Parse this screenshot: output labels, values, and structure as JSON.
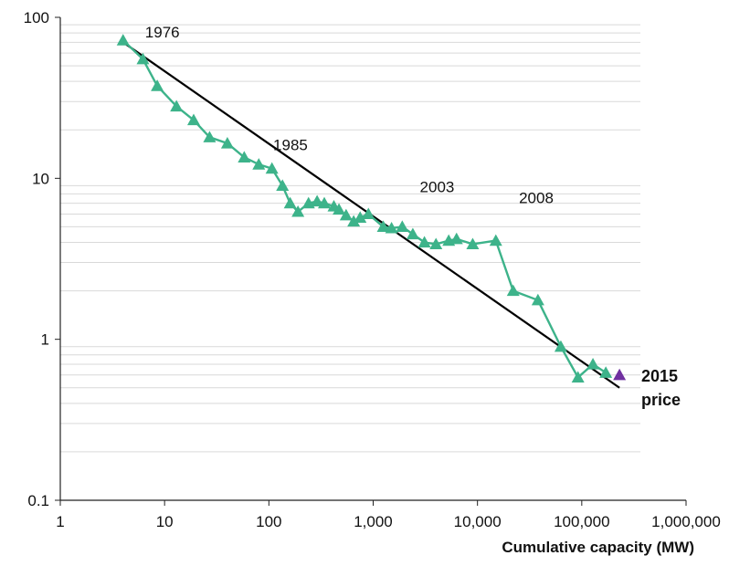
{
  "chart_data": {
    "type": "line",
    "title": "",
    "xlabel": "Cumulative capacity (MW)",
    "ylabel": "",
    "xscale": "log",
    "yscale": "log",
    "xlim": [
      1,
      1000000
    ],
    "ylim": [
      0.1,
      100
    ],
    "grid": "horizontal minor gridlines",
    "x_tick_labels": [
      "1",
      "10",
      "100",
      "1,000",
      "10,000",
      "100,000",
      "1,000,000"
    ],
    "y_tick_labels": [
      "0.1",
      "1",
      "10",
      "100"
    ],
    "series": [
      {
        "color": "#3db38a",
        "marker": "triangle",
        "x": [
          4.0,
          6.2,
          8.5,
          13,
          19,
          27,
          40,
          58,
          80,
          107,
          135,
          160,
          190,
          240,
          290,
          340,
          420,
          470,
          550,
          650,
          750,
          900,
          1250,
          1500,
          1900,
          2400,
          3100,
          4000,
          5300,
          6300,
          9000,
          15000,
          22000,
          38000,
          63000,
          92000,
          128000,
          170000
        ],
        "y": [
          72,
          55,
          37.5,
          28,
          23,
          18,
          16.5,
          13.5,
          12.2,
          11.5,
          9,
          7,
          6.2,
          7,
          7.2,
          7,
          6.7,
          6.4,
          5.9,
          5.4,
          5.7,
          6.0,
          5.0,
          4.9,
          5.0,
          4.5,
          4.0,
          3.9,
          4.1,
          4.2,
          3.9,
          4.1,
          2.0,
          1.75,
          0.9,
          0.58,
          0.7,
          0.62
        ]
      },
      {
        "color": "#000000",
        "type": "trendline",
        "x": [
          4,
          230000
        ],
        "y": [
          70,
          0.5
        ]
      },
      {
        "color": "#7030a0",
        "marker": "triangle",
        "x": [
          230000
        ],
        "y": [
          0.6
        ]
      }
    ],
    "annotations": [
      {
        "text": "1976",
        "x": 6.5,
        "y": 75
      },
      {
        "text": "1985",
        "x": 110,
        "y": 15
      },
      {
        "text": "2003",
        "x": 2800,
        "y": 8.2
      },
      {
        "text": "2008",
        "x": 25000,
        "y": 7.0
      }
    ],
    "end_label": [
      "2015",
      "price"
    ]
  }
}
